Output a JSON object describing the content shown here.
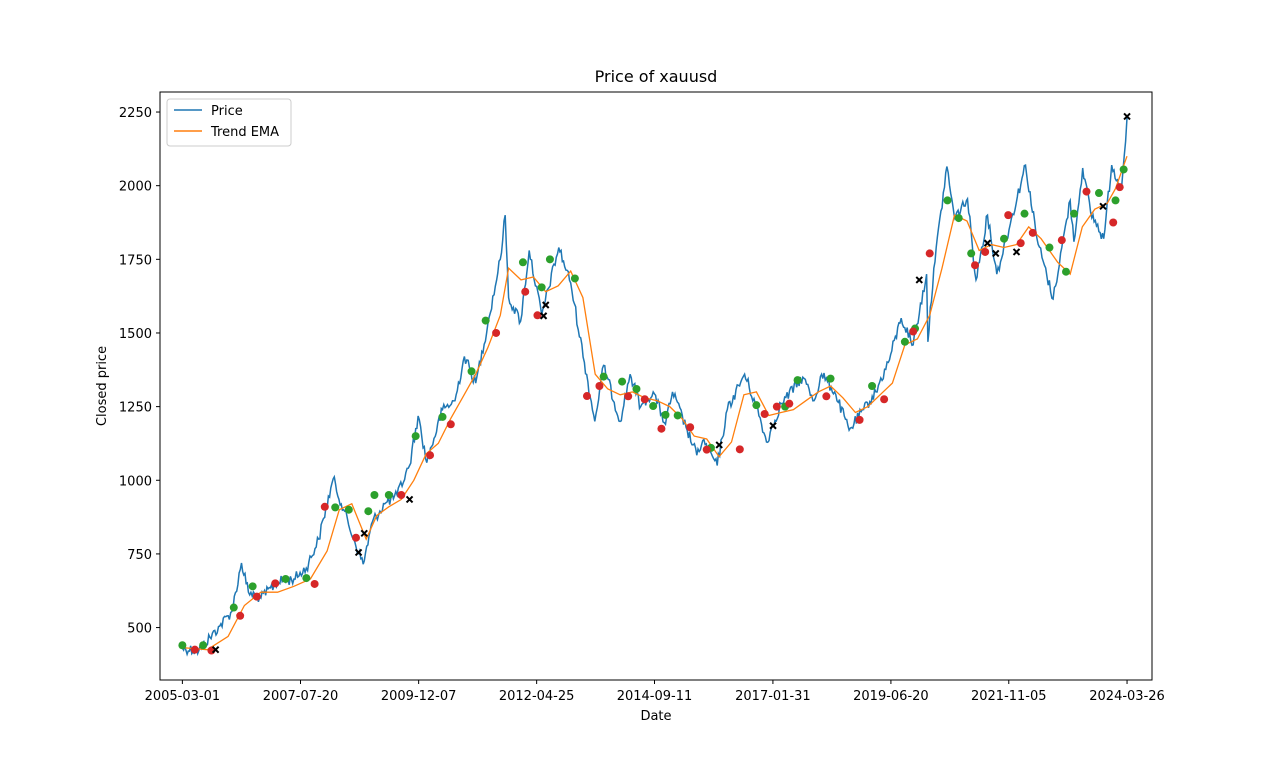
{
  "chart_data": {
    "type": "line",
    "title": "Price of xauusd",
    "xlabel": "Date",
    "ylabel": "Closed price",
    "x_ticks": [
      "2005-03-01",
      "2007-07-20",
      "2009-12-07",
      "2012-04-25",
      "2014-09-11",
      "2017-01-31",
      "2019-06-20",
      "2021-11-05",
      "2024-03-26"
    ],
    "xlim": [
      "2004-09-17",
      "2024-09-26"
    ],
    "y_ticks": [
      500,
      750,
      1000,
      1250,
      1500,
      1750,
      2000,
      2250
    ],
    "ylim": [
      322,
      2318
    ],
    "grid": false,
    "legend_position": "top-left",
    "colors": {
      "price": "#1f77b4",
      "ema": "#ff7f0e",
      "buy": "#2ca02c",
      "sell": "#d62728",
      "exit": "#000000"
    },
    "series": [
      {
        "name": "Price",
        "x": [
          "2005-03-01",
          "2005-07-01",
          "2005-12-01",
          "2006-03-01",
          "2006-05-11",
          "2006-07-01",
          "2006-10-01",
          "2007-02-01",
          "2007-06-01",
          "2007-09-01",
          "2007-12-01",
          "2008-03-17",
          "2008-06-01",
          "2008-08-15",
          "2008-10-24",
          "2009-01-01",
          "2009-04-01",
          "2009-07-01",
          "2009-10-01",
          "2009-12-03",
          "2010-02-05",
          "2010-06-01",
          "2010-09-01",
          "2010-11-09",
          "2011-02-01",
          "2011-05-01",
          "2011-08-01",
          "2011-09-06",
          "2011-10-01",
          "2011-12-29",
          "2012-03-01",
          "2012-06-01",
          "2012-10-05",
          "2013-01-01",
          "2013-04-12",
          "2013-06-28",
          "2013-09-01",
          "2013-12-31",
          "2014-03-15",
          "2014-06-01",
          "2014-09-01",
          "2014-12-01",
          "2015-01-22",
          "2015-05-01",
          "2015-07-20",
          "2015-09-01",
          "2015-12-17",
          "2016-03-01",
          "2016-07-06",
          "2016-10-01",
          "2016-12-15",
          "2017-04-01",
          "2017-09-08",
          "2017-12-01",
          "2018-01-25",
          "2018-05-01",
          "2018-08-16",
          "2018-12-01",
          "2019-03-01",
          "2019-06-01",
          "2019-09-04",
          "2019-12-01",
          "2020-03-09",
          "2020-03-19",
          "2020-05-01",
          "2020-08-06",
          "2020-10-01",
          "2021-01-05",
          "2021-03-08",
          "2021-06-01",
          "2021-08-09",
          "2021-11-16",
          "2022-03-08",
          "2022-06-01",
          "2022-09-28",
          "2022-12-01",
          "2023-02-01",
          "2023-02-28",
          "2023-05-04",
          "2023-07-01",
          "2023-10-06",
          "2023-12-04",
          "2024-01-15",
          "2024-02-14",
          "2024-03-05",
          "2024-03-26"
        ],
        "values": [
          430,
          422,
          505,
          555,
          719,
          620,
          600,
          655,
          665,
          702,
          800,
          1005,
          900,
          800,
          715,
          860,
          920,
          950,
          1050,
          1218,
          1060,
          1240,
          1270,
          1420,
          1330,
          1530,
          1750,
          1900,
          1620,
          1540,
          1780,
          1560,
          1790,
          1670,
          1400,
          1200,
          1390,
          1200,
          1360,
          1250,
          1300,
          1190,
          1300,
          1180,
          1085,
          1135,
          1050,
          1240,
          1360,
          1250,
          1130,
          1260,
          1350,
          1270,
          1360,
          1300,
          1170,
          1240,
          1300,
          1400,
          1550,
          1460,
          1700,
          1470,
          1720,
          2065,
          1890,
          1955,
          1680,
          1900,
          1700,
          1870,
          2070,
          1820,
          1615,
          1790,
          1950,
          1810,
          2060,
          1910,
          1820,
          2070,
          2020,
          1990,
          2100,
          2230
        ]
      },
      {
        "name": "Trend EMA",
        "x": [
          "2005-03-01",
          "2005-09-01",
          "2006-02-01",
          "2006-06-01",
          "2006-10-01",
          "2007-02-01",
          "2007-06-01",
          "2007-10-01",
          "2008-02-01",
          "2008-05-01",
          "2008-08-01",
          "2008-11-15",
          "2009-02-01",
          "2009-05-01",
          "2009-08-01",
          "2009-11-01",
          "2010-02-01",
          "2010-05-01",
          "2010-08-01",
          "2010-11-01",
          "2011-02-01",
          "2011-05-01",
          "2011-08-01",
          "2011-10-01",
          "2012-01-01",
          "2012-04-01",
          "2012-07-01",
          "2012-10-01",
          "2013-01-01",
          "2013-04-01",
          "2013-07-01",
          "2013-10-01",
          "2014-01-01",
          "2014-04-01",
          "2014-07-01",
          "2014-10-01",
          "2015-01-01",
          "2015-04-01",
          "2015-07-01",
          "2015-10-01",
          "2015-12-31",
          "2016-04-01",
          "2016-07-01",
          "2016-10-01",
          "2017-01-01",
          "2017-04-01",
          "2017-07-01",
          "2017-10-01",
          "2018-01-01",
          "2018-04-01",
          "2018-07-01",
          "2018-10-01",
          "2019-01-01",
          "2019-04-01",
          "2019-07-01",
          "2019-10-01",
          "2020-01-01",
          "2020-04-01",
          "2020-07-01",
          "2020-10-01",
          "2021-01-01",
          "2021-04-01",
          "2021-07-01",
          "2021-10-01",
          "2022-01-01",
          "2022-04-01",
          "2022-07-01",
          "2022-11-01",
          "2023-02-01",
          "2023-05-01",
          "2023-08-01",
          "2023-11-01",
          "2024-01-01",
          "2024-03-26"
        ],
        "values": [
          432,
          425,
          470,
          575,
          620,
          620,
          640,
          665,
          760,
          900,
          920,
          800,
          880,
          910,
          935,
          1000,
          1090,
          1125,
          1210,
          1285,
          1360,
          1450,
          1560,
          1720,
          1680,
          1690,
          1640,
          1660,
          1710,
          1620,
          1360,
          1310,
          1290,
          1300,
          1280,
          1270,
          1250,
          1210,
          1150,
          1140,
          1080,
          1130,
          1290,
          1300,
          1220,
          1230,
          1240,
          1270,
          1300,
          1320,
          1280,
          1230,
          1250,
          1290,
          1330,
          1460,
          1480,
          1560,
          1720,
          1900,
          1880,
          1780,
          1800,
          1790,
          1800,
          1860,
          1820,
          1740,
          1700,
          1860,
          1920,
          1940,
          1990,
          2100
        ]
      }
    ],
    "markers": {
      "buy": {
        "x": [
          "2005-03-01",
          "2005-08-01",
          "2006-03-15",
          "2006-08-01",
          "2007-04-01",
          "2007-09-01",
          "2008-04-01",
          "2008-07-10",
          "2008-12-01",
          "2009-01-15",
          "2009-05-01",
          "2009-11-15",
          "2010-06-01",
          "2011-01-01",
          "2011-04-15",
          "2012-01-15",
          "2012-06-01",
          "2012-08-01",
          "2013-02-01",
          "2013-09-01",
          "2014-01-15",
          "2014-05-01",
          "2014-09-01",
          "2014-12-01",
          "2015-03-01",
          "2015-11-01",
          "2016-10-01",
          "2017-05-01",
          "2017-08-01",
          "2018-04-01",
          "2019-02-01",
          "2019-10-01",
          "2019-12-15",
          "2020-08-10",
          "2020-11-01",
          "2021-02-01",
          "2021-10-01",
          "2022-03-01",
          "2022-09-01",
          "2023-01-01",
          "2023-03-01",
          "2023-09-01",
          "2024-01-01",
          "2024-03-01"
        ],
        "values": [
          440,
          440,
          568,
          640,
          665,
          668,
          908,
          900,
          895,
          950,
          950,
          1150,
          1215,
          1370,
          1542,
          1740,
          1655,
          1750,
          1685,
          1352,
          1335,
          1310,
          1252,
          1222,
          1220,
          1110,
          1255,
          1250,
          1340,
          1345,
          1320,
          1470,
          1515,
          1950,
          1890,
          1770,
          1820,
          1905,
          1790,
          1708,
          1905,
          1975,
          1950,
          2055
        ],
        "color": "#2ca02c"
      },
      "sell": {
        "x": [
          "2005-06-01",
          "2005-10-01",
          "2006-05-01",
          "2006-09-01",
          "2007-01-15",
          "2007-11-01",
          "2008-01-15",
          "2008-09-01",
          "2009-08-01",
          "2010-03-01",
          "2010-08-01",
          "2011-07-01",
          "2012-02-01",
          "2012-05-01",
          "2013-05-01",
          "2013-08-01",
          "2014-03-01",
          "2014-07-01",
          "2014-11-01",
          "2015-06-01",
          "2015-10-01",
          "2016-06-01",
          "2016-12-01",
          "2017-03-01",
          "2017-06-01",
          "2018-03-01",
          "2018-11-01",
          "2019-05-01",
          "2019-12-01",
          "2020-04-01",
          "2021-03-01",
          "2021-05-15",
          "2021-11-01",
          "2022-02-01",
          "2022-05-01",
          "2022-12-01",
          "2023-06-01",
          "2023-12-15",
          "2024-02-01"
        ],
        "values": [
          425,
          422,
          540,
          605,
          650,
          648,
          910,
          805,
          950,
          1085,
          1190,
          1500,
          1640,
          1560,
          1286,
          1320,
          1285,
          1275,
          1175,
          1180,
          1104,
          1105,
          1225,
          1250,
          1260,
          1285,
          1205,
          1275,
          1505,
          1770,
          1730,
          1775,
          1900,
          1805,
          1840,
          1815,
          1980,
          1875,
          1995
        ],
        "color": "#d62728"
      },
      "exit": {
        "x": [
          "2005-11-01",
          "2008-09-20",
          "2008-11-01",
          "2009-10-01",
          "2012-06-15",
          "2012-07-01",
          "2016-01-01",
          "2017-02-01",
          "2020-01-15",
          "2021-06-01",
          "2021-08-01",
          "2022-01-01",
          "2023-10-01",
          "2024-03-26"
        ],
        "values": [
          425,
          755,
          820,
          935,
          1558,
          1595,
          1120,
          1185,
          1680,
          1805,
          1770,
          1775,
          1930,
          2235
        ],
        "color": "#000000"
      }
    },
    "legend": [
      {
        "label": "Price",
        "color": "#1f77b4"
      },
      {
        "label": "Trend EMA",
        "color": "#ff7f0e"
      }
    ]
  }
}
